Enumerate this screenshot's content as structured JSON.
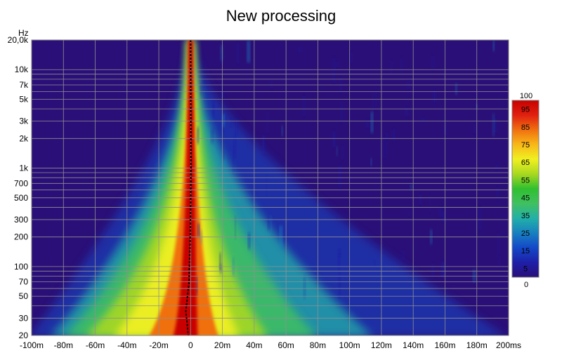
{
  "chart_data": {
    "type": "heatmap",
    "title": "New processing",
    "y_unit": "Hz",
    "x_unit": "s",
    "x_range": [
      -0.1,
      0.2
    ],
    "y_range": [
      20,
      20000
    ],
    "y_scale": "log",
    "grid": true,
    "x_ticks": [
      {
        "value": -0.1,
        "label": "-100m"
      },
      {
        "value": -0.08,
        "label": "-80m"
      },
      {
        "value": -0.06,
        "label": "-60m"
      },
      {
        "value": -0.04,
        "label": "-40m"
      },
      {
        "value": -0.02,
        "label": "-20m"
      },
      {
        "value": 0,
        "label": "0"
      },
      {
        "value": 0.02,
        "label": "20m"
      },
      {
        "value": 0.04,
        "label": "40m"
      },
      {
        "value": 0.06,
        "label": "60m"
      },
      {
        "value": 0.08,
        "label": "80m"
      },
      {
        "value": 0.1,
        "label": "100m"
      },
      {
        "value": 0.12,
        "label": "120m"
      },
      {
        "value": 0.14,
        "label": "140m"
      },
      {
        "value": 0.16,
        "label": "160m"
      },
      {
        "value": 0.18,
        "label": "180m"
      },
      {
        "value": 0.2,
        "label": "200ms"
      }
    ],
    "y_ticks": [
      {
        "value": 20000,
        "label": "20,0k"
      },
      {
        "value": 10000,
        "label": "10k"
      },
      {
        "value": 7000,
        "label": "7k"
      },
      {
        "value": 5000,
        "label": "5k"
      },
      {
        "value": 3000,
        "label": "3k"
      },
      {
        "value": 2000,
        "label": "2k"
      },
      {
        "value": 1000,
        "label": "1k"
      },
      {
        "value": 700,
        "label": "700"
      },
      {
        "value": 500,
        "label": "500"
      },
      {
        "value": 300,
        "label": "300"
      },
      {
        "value": 200,
        "label": "200"
      },
      {
        "value": 100,
        "label": "100"
      },
      {
        "value": 70,
        "label": "70"
      },
      {
        "value": 50,
        "label": "50"
      },
      {
        "value": 30,
        "label": "30"
      },
      {
        "value": 20,
        "label": "20"
      }
    ],
    "y_minor_gridlines": [
      9000,
      8000,
      6000,
      4000,
      900,
      800,
      600,
      400,
      90,
      80,
      60,
      40
    ],
    "colorbar": {
      "range": [
        0,
        100
      ],
      "top_label": "100",
      "bottom_label": "0",
      "ticks": [
        95,
        85,
        75,
        65,
        55,
        45,
        35,
        25,
        15,
        5
      ],
      "colormap": [
        "#2a0f78",
        "#1e1fa8",
        "#1448c8",
        "#1880c0",
        "#22b0a8",
        "#40c060",
        "#30c030",
        "#a8d820",
        "#f0f020",
        "#f8b818",
        "#f07010",
        "#e02010",
        "#c80000"
      ]
    },
    "peak_ridge": {
      "color": "#000000",
      "points": [
        {
          "f": 20000,
          "t": 0.0
        },
        {
          "f": 1000,
          "t": 0.0002
        },
        {
          "f": 200,
          "t": -0.0003
        },
        {
          "f": 70,
          "t": -0.001
        },
        {
          "f": 35,
          "t": -0.003
        },
        {
          "f": 25,
          "t": -0.002
        },
        {
          "f": 20,
          "t": -0.0015
        }
      ]
    }
  }
}
